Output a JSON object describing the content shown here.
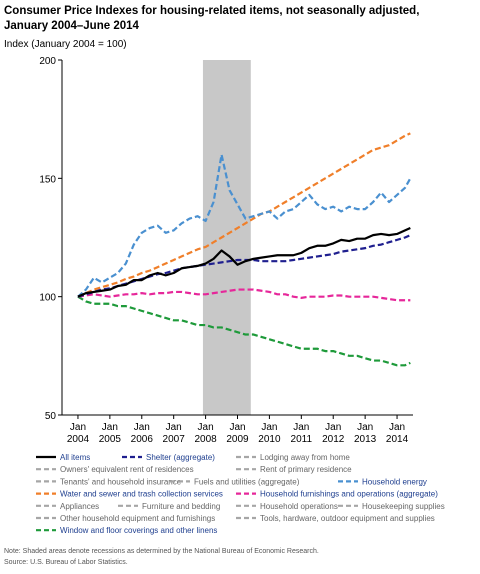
{
  "chart_data": {
    "type": "line",
    "title": "Consumer Price Indexes for housing-related items, not seasonally adjusted, January 2004–June 2014",
    "y_label": "Index (January 2004 = 100)",
    "x": [
      "2004-01",
      "2004-04",
      "2004-07",
      "2004-10",
      "2005-01",
      "2005-04",
      "2005-07",
      "2005-10",
      "2006-01",
      "2006-04",
      "2006-07",
      "2006-10",
      "2007-01",
      "2007-04",
      "2007-07",
      "2007-10",
      "2008-01",
      "2008-04",
      "2008-07",
      "2008-10",
      "2009-01",
      "2009-04",
      "2009-07",
      "2009-10",
      "2010-01",
      "2010-04",
      "2010-07",
      "2010-10",
      "2011-01",
      "2011-04",
      "2011-07",
      "2011-10",
      "2012-01",
      "2012-04",
      "2012-07",
      "2012-10",
      "2013-01",
      "2013-04",
      "2013-07",
      "2013-10",
      "2014-01",
      "2014-04",
      "2014-06"
    ],
    "xlim": [
      "2003-07",
      "2014-07"
    ],
    "xticks": [
      {
        "value": "2004-01",
        "label": "Jan 2004"
      },
      {
        "value": "2005-01",
        "label": "Jan 2005"
      },
      {
        "value": "2006-01",
        "label": "Jan 2006"
      },
      {
        "value": "2007-01",
        "label": "Jan 2007"
      },
      {
        "value": "2008-01",
        "label": "Jan 2008"
      },
      {
        "value": "2009-01",
        "label": "Jan 2009"
      },
      {
        "value": "2010-01",
        "label": "Jan 2010"
      },
      {
        "value": "2011-01",
        "label": "Jan 2011"
      },
      {
        "value": "2012-01",
        "label": "Jan 2012"
      },
      {
        "value": "2013-01",
        "label": "Jan 2013"
      },
      {
        "value": "2014-01",
        "label": "Jan 2014"
      }
    ],
    "ylim": [
      50,
      200
    ],
    "yticks": [
      50,
      100,
      150,
      200
    ],
    "recession": [
      "2007-12",
      "2009-06"
    ],
    "series": [
      {
        "name": "All items",
        "color": "#000000",
        "dashed": false,
        "values": [
          100,
          101.5,
          102,
          102.5,
          103,
          104.5,
          105,
          107,
          107,
          109,
          110,
          109,
          110,
          112,
          112.5,
          113,
          114,
          116,
          119.5,
          117,
          113.5,
          115,
          116,
          116.5,
          117,
          117.5,
          117.5,
          117.5,
          118.5,
          120.5,
          121.5,
          121.5,
          122.5,
          124,
          123.5,
          124.5,
          124.5,
          126,
          126.5,
          126,
          126.5,
          128,
          129
        ]
      },
      {
        "name": "Shelter (aggregate)",
        "color": "#1f1f8f",
        "dashed": true,
        "values": [
          100,
          101,
          102,
          103,
          103.5,
          104.5,
          105.5,
          106.5,
          107.5,
          108.5,
          109.5,
          110,
          111,
          112,
          112.5,
          113,
          113.5,
          114,
          114.5,
          115,
          115.5,
          115.5,
          115.5,
          115,
          115,
          115,
          115,
          115.5,
          116,
          116.5,
          117,
          117.5,
          118,
          119,
          119.5,
          120,
          120.5,
          121.5,
          122,
          123,
          124,
          125,
          126
        ]
      },
      {
        "name": "Household energy",
        "color": "#4a90d0",
        "dashed": true,
        "values": [
          100,
          103,
          108,
          106,
          108,
          110,
          114,
          122,
          127,
          129,
          130,
          127,
          128,
          131,
          133,
          134,
          132,
          140,
          160,
          145,
          139,
          133,
          134,
          135,
          136,
          133,
          136,
          137,
          140,
          143,
          139,
          137,
          138,
          136,
          138,
          137,
          137,
          140,
          144,
          140,
          143,
          146,
          150
        ]
      },
      {
        "name": "Water and sewer and trash collection services",
        "color": "#f07f2a",
        "dashed": true,
        "values": [
          100,
          101.5,
          103,
          104,
          105,
          106,
          107.5,
          108.5,
          110,
          111,
          112.5,
          114,
          115.5,
          117,
          118.5,
          120,
          121,
          123,
          125,
          127,
          129,
          131,
          133,
          135,
          136,
          138,
          140,
          142,
          144,
          146,
          148,
          150,
          152,
          154,
          156,
          158,
          160,
          162,
          163,
          164,
          166,
          168,
          169
        ]
      },
      {
        "name": "Household furnishings and operations (aggregate)",
        "color": "#e6279a",
        "dashed": true,
        "values": [
          100,
          100.5,
          101,
          100.5,
          100,
          100.5,
          101,
          101,
          101.5,
          101,
          101.5,
          101.5,
          102,
          102,
          101.5,
          101,
          101,
          101.5,
          102,
          102.5,
          103,
          103,
          103,
          102.5,
          102,
          101,
          101,
          100,
          99.5,
          100,
          100,
          100,
          100.5,
          100.5,
          100,
          100,
          100,
          100,
          99.5,
          99,
          98.5,
          98.5,
          98.5
        ]
      },
      {
        "name": "Window and floor coverings and other linens",
        "color": "#1e9a3a",
        "dashed": true,
        "values": [
          100,
          98,
          97,
          97,
          97,
          96,
          96,
          95,
          94,
          93,
          92,
          91,
          90,
          90,
          89,
          88,
          88,
          87,
          87,
          86,
          85,
          84,
          84,
          83,
          82,
          81,
          80,
          79,
          78,
          78,
          78,
          77,
          77,
          76,
          75,
          75,
          74,
          73,
          73,
          72,
          71,
          71,
          72
        ]
      }
    ],
    "other_items": [
      {
        "name": "Lodging away from home",
        "color": "#a6a6a6"
      },
      {
        "name": "Owners' equivalent rent of residences",
        "color": "#a6a6a6"
      },
      {
        "name": "Rent of primary residence",
        "color": "#a6a6a6"
      },
      {
        "name": "Tenants' and household insurance",
        "color": "#a6a6a6"
      },
      {
        "name": "Fuels and utilities (aggregate)",
        "color": "#a6a6a6"
      },
      {
        "name": "Appliances",
        "color": "#a6a6a6"
      },
      {
        "name": "Furniture and bedding",
        "color": "#a6a6a6"
      },
      {
        "name": "Household operations",
        "color": "#a6a6a6"
      },
      {
        "name": "Housekeeping supplies",
        "color": "#a6a6a6"
      },
      {
        "name": "Other household equipment and furnishings",
        "color": "#a6a6a6"
      },
      {
        "name": "Tools, hardware, outdoor equipment and supplies",
        "color": "#a6a6a6"
      }
    ],
    "notes": [
      "Note: Shaded areas denote recessions as determined by the National Bureau of Economic Research.",
      "Source: U.S. Bureau of Labor Statistics."
    ]
  }
}
